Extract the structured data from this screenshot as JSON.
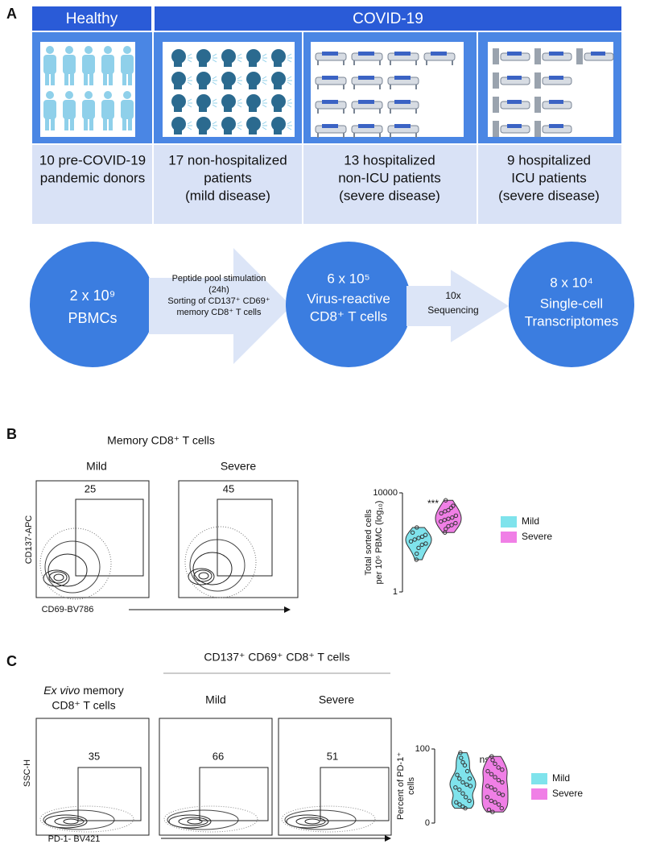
{
  "panel_a": {
    "label": "A",
    "headers": [
      "Healthy",
      "COVID-19"
    ],
    "groups": [
      [
        "10 pre-COVID-19",
        "pandemic donors"
      ],
      [
        "17 non-hospitalized",
        "patients",
        "(mild disease)"
      ],
      [
        "13 hospitalized",
        "non-ICU patients",
        "(severe disease)"
      ],
      [
        "9 hospitalized",
        "ICU patients",
        "(severe disease)"
      ]
    ],
    "flow": {
      "circle1": [
        "2 x 10⁹",
        "PBMCs"
      ],
      "arrow1": [
        "Peptide pool stimulation",
        "(24h)",
        "Sorting of CD137⁺ CD69⁺",
        "memory CD8⁺ T cells"
      ],
      "circle2": [
        "6 x 10⁵",
        "Virus-reactive",
        "CD8⁺ T cells"
      ],
      "arrow2": [
        "10x",
        "Sequencing"
      ],
      "circle3": [
        "8 x 10⁴",
        "Single-cell",
        "Transcriptomes"
      ]
    }
  },
  "panel_b": {
    "label": "B",
    "title": "Memory CD8⁺ T cells",
    "plots": [
      {
        "name": "Mild",
        "gate": 25
      },
      {
        "name": "Severe",
        "gate": 45
      }
    ],
    "y_axis": "CD137-APC",
    "x_axis": "CD69-BV786",
    "violin": {
      "ylabel": [
        "Total sorted cells",
        "per 10⁶ PBMC (log₁₀)"
      ],
      "log": true,
      "ylim": [
        1,
        10000
      ],
      "yticks": [
        1,
        10000
      ],
      "significance": "***",
      "series": [
        {
          "name": "Mild",
          "color": "#7fe3ec",
          "values": [
            20,
            35,
            60,
            80,
            90,
            110,
            130,
            150,
            170,
            200,
            250,
            400
          ]
        },
        {
          "name": "Severe",
          "color": "#f07fe6",
          "values": [
            250,
            350,
            450,
            500,
            600,
            700,
            800,
            900,
            1000,
            1200,
            1500,
            1800,
            2000,
            2500,
            3000,
            5000
          ]
        }
      ]
    }
  },
  "panel_c": {
    "label": "C",
    "header": "CD137⁺ CD69⁺ CD8⁺ T cells",
    "exvivo": {
      "italic": "Ex vivo",
      "rest": " memory",
      "line2": "CD8⁺ T cells"
    },
    "plots": [
      {
        "gate": 35
      },
      {
        "name": "Mild",
        "gate": 66
      },
      {
        "name": "Severe",
        "gate": 51
      }
    ],
    "y_axis": "SSC-H",
    "x_axis": "PD-1- BV421",
    "violin": {
      "ylabel": [
        "Percent of PD-1⁺",
        "cells"
      ],
      "log": false,
      "ylim": [
        0,
        100
      ],
      "yticks": [
        0,
        100
      ],
      "significance": "ns",
      "series": [
        {
          "name": "Mild",
          "color": "#7fe3ec",
          "values": [
            95,
            88,
            82,
            78,
            70,
            65,
            60,
            55,
            52,
            50,
            48,
            45,
            40,
            35,
            30,
            28,
            25,
            22,
            20,
            60
          ]
        },
        {
          "name": "Severe",
          "color": "#f07fe6",
          "values": [
            90,
            85,
            80,
            75,
            72,
            70,
            66,
            62,
            58,
            55,
            50,
            48,
            45,
            40,
            38,
            35,
            30,
            28,
            25,
            20,
            18,
            15
          ]
        }
      ]
    }
  }
}
